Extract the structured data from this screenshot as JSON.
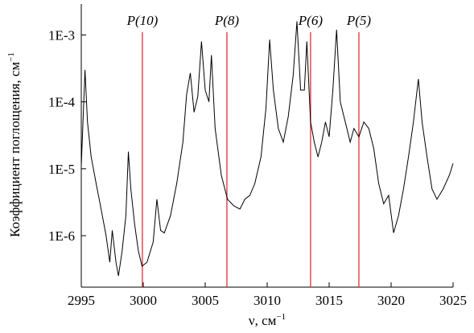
{
  "chart_data": {
    "type": "line",
    "xlabel": {
      "text": "ν, см",
      "sup": "−1"
    },
    "ylabel": {
      "text": "Коэффициент поглощения, см",
      "sup": "−1"
    },
    "log_y": true,
    "color": "#000000",
    "xlim": [
      2995,
      3025
    ],
    "xticks": [
      2995,
      3000,
      3005,
      3010,
      3015,
      3020,
      3025
    ],
    "ylim": [
      1.7e-07,
      0.0029
    ],
    "yticks": [
      {
        "value": 1e-06,
        "label": "1E-6"
      },
      {
        "value": 1e-05,
        "label": "1E-5"
      },
      {
        "value": 0.0001,
        "label": "1E-4"
      },
      {
        "value": 0.001,
        "label": "1E-3"
      }
    ],
    "markers": {
      "color": "#e0303a",
      "items": [
        {
          "x": 2999.93,
          "label": "P(10)"
        },
        {
          "x": 3006.75,
          "label": "P(8)"
        },
        {
          "x": 3013.5,
          "label": "P(6)"
        },
        {
          "x": 3017.4,
          "label": "P(5)"
        }
      ]
    },
    "x": [
      2995.0,
      2995.3,
      2995.5,
      2995.8,
      2996.2,
      2996.6,
      2997.0,
      2997.3,
      2997.5,
      2997.8,
      2998.0,
      2998.3,
      2998.6,
      2998.8,
      2999.0,
      2999.3,
      2999.6,
      2999.9,
      3000.3,
      3000.8,
      3001.1,
      3001.4,
      3001.7,
      3002.2,
      3002.7,
      3003.2,
      3003.5,
      3003.8,
      3004.1,
      3004.4,
      3004.7,
      3005.0,
      3005.3,
      3005.5,
      3005.8,
      3006.3,
      3006.8,
      3007.3,
      3007.8,
      3008.2,
      3008.6,
      3009.0,
      3009.5,
      3009.9,
      3010.2,
      3010.5,
      3010.9,
      3011.3,
      3011.7,
      3012.1,
      3012.4,
      3012.7,
      3013.0,
      3013.2,
      3013.5,
      3013.8,
      3014.1,
      3014.4,
      3014.7,
      3015.0,
      3015.3,
      3015.6,
      3015.9,
      3016.3,
      3016.7,
      3017.0,
      3017.4,
      3017.8,
      3018.2,
      3018.6,
      3019.0,
      3019.4,
      3019.8,
      3020.2,
      3020.6,
      3021.0,
      3021.4,
      3021.8,
      3022.2,
      3022.5,
      3022.9,
      3023.3,
      3023.7,
      3024.2,
      3024.7,
      3025.0
    ],
    "values": [
      1.1e-05,
      0.0003,
      5e-05,
      1.5e-05,
      6e-06,
      2.5e-06,
      1e-06,
      4e-07,
      1.2e-06,
      4e-07,
      2.5e-07,
      6e-07,
      2e-06,
      1.8e-05,
      5e-06,
      1.5e-06,
      6e-07,
      3.5e-07,
      4e-07,
      8e-07,
      3.5e-06,
      1.2e-06,
      1.1e-06,
      2e-06,
      6e-06,
      2.5e-05,
      0.00013,
      0.00027,
      7e-05,
      0.00012,
      0.0008,
      0.00015,
      0.0001,
      0.0005,
      4e-05,
      8e-06,
      3.5e-06,
      2.8e-06,
      2.5e-06,
      3.5e-06,
      4e-06,
      6e-06,
      1.5e-05,
      8e-05,
      0.00085,
      0.00015,
      4e-05,
      2.5e-05,
      6e-05,
      0.00025,
      0.0016,
      0.00015,
      0.00015,
      0.0008,
      5e-05,
      2.5e-05,
      1.5e-05,
      2.5e-05,
      5e-05,
      3e-05,
      0.00015,
      0.0012,
      0.0001,
      5e-05,
      2.5e-05,
      4e-05,
      3e-05,
      5e-05,
      4e-05,
      2e-05,
      6e-06,
      3e-06,
      4e-06,
      1.1e-06,
      2e-06,
      5e-06,
      1.5e-05,
      5e-05,
      0.00022,
      5e-05,
      1.5e-05,
      5e-06,
      3.5e-06,
      5e-06,
      8e-06,
      1.2e-05
    ]
  }
}
